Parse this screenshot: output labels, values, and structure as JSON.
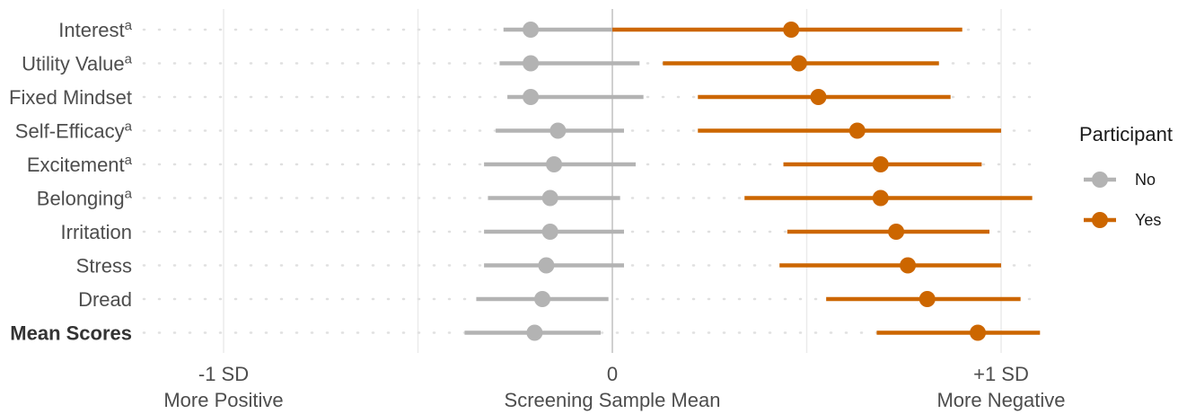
{
  "chart_data": {
    "type": "forest",
    "categories": [
      "Interest",
      "Utility Value",
      "Fixed Mindset",
      "Self-Efficacy",
      "Excitement",
      "Belonging",
      "Irritation",
      "Stress",
      "Dread",
      "Mean Scores"
    ],
    "category_superscripts": [
      "a",
      "a",
      "",
      "a",
      "a",
      "a",
      "",
      "",
      "",
      ""
    ],
    "bold_categories": [
      "Mean Scores"
    ],
    "xlim": [
      -1.1,
      1.1
    ],
    "x_ticks": [
      {
        "value": -1,
        "line1": "-1 SD",
        "line2": "More Positive"
      },
      {
        "value": 0,
        "line1": "0",
        "line2": "Screening Sample Mean"
      },
      {
        "value": 1,
        "line1": "+1 SD",
        "line2": "More Negative"
      }
    ],
    "gridlines": [
      -1,
      -0.5,
      0,
      0.5,
      1
    ],
    "series": [
      {
        "name": "No",
        "color": "#b3b3b3",
        "points": [
          {
            "mean": -0.21,
            "lo": -0.28,
            "hi": 0.0
          },
          {
            "mean": -0.21,
            "lo": -0.29,
            "hi": 0.07
          },
          {
            "mean": -0.21,
            "lo": -0.27,
            "hi": 0.08
          },
          {
            "mean": -0.14,
            "lo": -0.3,
            "hi": 0.03
          },
          {
            "mean": -0.15,
            "lo": -0.33,
            "hi": 0.06
          },
          {
            "mean": -0.16,
            "lo": -0.32,
            "hi": 0.02
          },
          {
            "mean": -0.16,
            "lo": -0.33,
            "hi": 0.03
          },
          {
            "mean": -0.17,
            "lo": -0.33,
            "hi": 0.03
          },
          {
            "mean": -0.18,
            "lo": -0.35,
            "hi": -0.01
          },
          {
            "mean": -0.2,
            "lo": -0.38,
            "hi": -0.03
          }
        ]
      },
      {
        "name": "Yes",
        "color": "#cc6600",
        "points": [
          {
            "mean": 0.46,
            "lo": 0.0,
            "hi": 0.9
          },
          {
            "mean": 0.48,
            "lo": 0.13,
            "hi": 0.84
          },
          {
            "mean": 0.53,
            "lo": 0.22,
            "hi": 0.87
          },
          {
            "mean": 0.63,
            "lo": 0.22,
            "hi": 1.0
          },
          {
            "mean": 0.69,
            "lo": 0.44,
            "hi": 0.95
          },
          {
            "mean": 0.69,
            "lo": 0.34,
            "hi": 1.08
          },
          {
            "mean": 0.73,
            "lo": 0.45,
            "hi": 0.97
          },
          {
            "mean": 0.76,
            "lo": 0.43,
            "hi": 1.0
          },
          {
            "mean": 0.81,
            "lo": 0.55,
            "hi": 1.05
          },
          {
            "mean": 0.94,
            "lo": 0.68,
            "hi": 1.1
          }
        ]
      }
    ],
    "legend": {
      "title": "Participant",
      "position": "right"
    }
  }
}
